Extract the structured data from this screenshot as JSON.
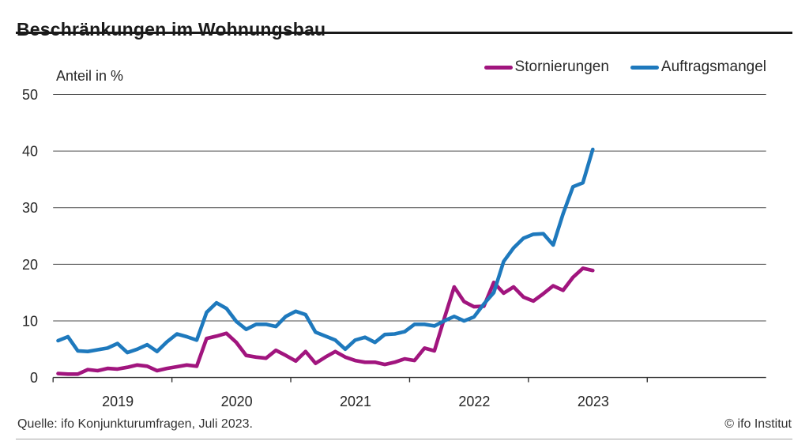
{
  "header": {
    "title": "Beschränkungen im Wohnungsbau"
  },
  "chart_data": {
    "type": "line",
    "title": "Beschränkungen im Wohnungsbau",
    "unit_label": "Anteil in %",
    "frequency": "monthly",
    "x_start": "2019-01",
    "x_end": "2023-07",
    "xtick_labels": [
      "2019",
      "2020",
      "2021",
      "2022",
      "2023"
    ],
    "ylim": [
      0,
      50
    ],
    "yticks": [
      0,
      10,
      20,
      30,
      40,
      50
    ],
    "grid": "horizontal",
    "legend_position": "top-right",
    "series": [
      {
        "name": "Stornierungen",
        "color": "#a1157e",
        "values": [
          0.7,
          0.6,
          0.6,
          1.4,
          1.2,
          1.6,
          1.5,
          1.8,
          2.2,
          2.0,
          1.2,
          1.6,
          1.9,
          2.2,
          2.0,
          6.9,
          7.3,
          7.8,
          6.2,
          3.9,
          3.6,
          3.4,
          4.8,
          3.9,
          2.9,
          4.6,
          2.5,
          3.6,
          4.6,
          3.6,
          3.0,
          2.7,
          2.7,
          2.3,
          2.7,
          3.3,
          3.0,
          5.2,
          4.7,
          10.4,
          16.0,
          13.4,
          12.5,
          12.6,
          16.8,
          14.9,
          16.0,
          14.2,
          13.5,
          14.8,
          16.2,
          15.4,
          17.7,
          19.3,
          18.9
        ]
      },
      {
        "name": "Auftragsmangel",
        "color": "#1e79bd",
        "values": [
          6.5,
          7.2,
          4.7,
          4.6,
          4.9,
          5.2,
          6.0,
          4.4,
          5.0,
          5.8,
          4.6,
          6.3,
          7.7,
          7.2,
          6.6,
          11.5,
          13.2,
          12.2,
          9.9,
          8.5,
          9.4,
          9.4,
          9.0,
          10.8,
          11.7,
          11.1,
          8.0,
          7.3,
          6.6,
          5.0,
          6.6,
          7.1,
          6.2,
          7.6,
          7.7,
          8.1,
          9.4,
          9.4,
          9.1,
          10.0,
          10.8,
          10.0,
          10.7,
          13.0,
          15.0,
          20.5,
          22.9,
          24.6,
          25.3,
          25.4,
          23.4,
          28.9,
          33.7,
          34.4,
          40.3
        ]
      }
    ]
  },
  "footer": {
    "source": "Quelle: ifo Konjunkturumfragen, Juli 2023.",
    "copyright": "© ifo Institut"
  }
}
